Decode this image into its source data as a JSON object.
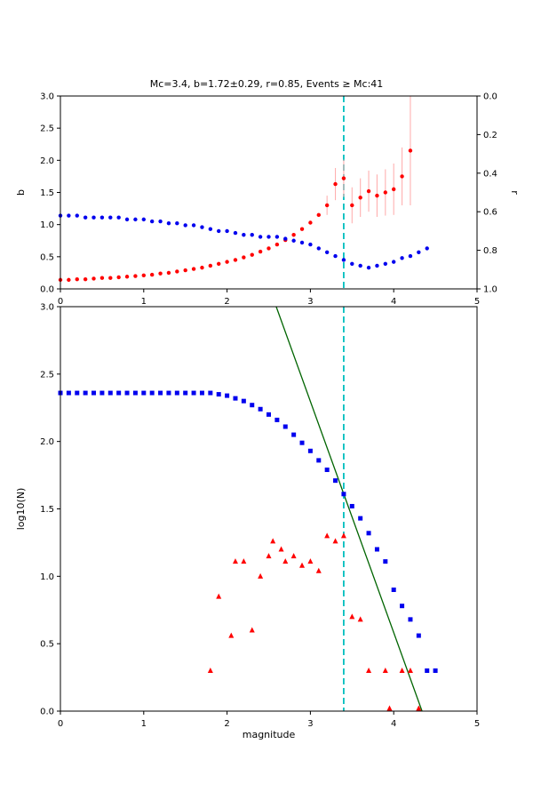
{
  "figure": {
    "title": "Mc=3.4, b=1.72±0.29, r=0.85, Events ≥ Mc:41",
    "background": "#ffffff"
  },
  "chart_data": {
    "type": "scatter",
    "title": "Mc=3.4, b=1.72±0.29, r=0.85, Events ≥ Mc:41",
    "stats": {
      "mc": 3.4,
      "b": 1.72,
      "b_err": 0.29,
      "r": 0.85,
      "events_ge_mc": 41
    },
    "colors": {
      "b_series": "#ff0000",
      "r_series": "#0000ee",
      "error_bar": "#ffb0b0",
      "mc_line": "#00bfbf",
      "fit_line": "#006400",
      "cumulative": "#0000ee",
      "binned": "#ff0000",
      "axis": "#000000"
    },
    "panels": [
      {
        "id": "top",
        "xlim": [
          0,
          5
        ],
        "xticks": [
          0,
          1,
          2,
          3,
          4,
          5
        ],
        "xtick_labels": [
          "0",
          "1",
          "2",
          "3",
          "4",
          "5"
        ],
        "xlabel": "",
        "left_axis": {
          "label": "b",
          "lim": [
            0,
            3
          ],
          "ticks": [
            0,
            0.5,
            1,
            1.5,
            2,
            2.5,
            3
          ],
          "tick_labels": [
            "0.0",
            "0.5",
            "1.0",
            "1.5",
            "2.0",
            "2.5",
            "3.0"
          ]
        },
        "right_axis": {
          "label": "r",
          "lim": [
            0,
            1
          ],
          "ticks": [
            0,
            0.2,
            0.4,
            0.6,
            0.8,
            1
          ],
          "tick_labels": [
            "0.0",
            "0.2",
            "0.4",
            "0.6",
            "0.8",
            "1.0"
          ]
        },
        "lines": [
          {
            "type": "vline",
            "x": 3.4,
            "color": "#00bfbf",
            "dash": "7,4",
            "width": 1.8,
            "name": "mc-line"
          }
        ],
        "series": [
          {
            "name": "b_value",
            "marker": "circle",
            "color": "#ff0000",
            "axis": "left",
            "err_color": "#ffb0b0",
            "x": [
              0,
              0.1,
              0.2,
              0.3,
              0.4,
              0.5,
              0.6,
              0.7,
              0.8,
              0.9,
              1,
              1.1,
              1.2,
              1.3,
              1.4,
              1.5,
              1.6,
              1.7,
              1.8,
              1.9,
              2,
              2.1,
              2.2,
              2.3,
              2.4,
              2.5,
              2.6,
              2.7,
              2.8,
              2.9,
              3,
              3.1,
              3.2,
              3.3,
              3.4,
              3.5,
              3.6,
              3.7,
              3.8,
              3.9,
              4,
              4.1,
              4.2
            ],
            "y": [
              0.14,
              0.14,
              0.15,
              0.15,
              0.16,
              0.17,
              0.17,
              0.18,
              0.19,
              0.2,
              0.21,
              0.22,
              0.24,
              0.25,
              0.27,
              0.29,
              0.31,
              0.33,
              0.36,
              0.39,
              0.42,
              0.45,
              0.49,
              0.53,
              0.58,
              0.63,
              0.69,
              0.76,
              0.84,
              0.93,
              1.03,
              1.15,
              1.3,
              1.63,
              1.72,
              1.3,
              1.42,
              1.52,
              1.45,
              1.5,
              1.55,
              1.75,
              2.15
            ],
            "yerr": [
              0,
              0,
              0,
              0,
              0,
              0,
              0,
              0,
              0,
              0,
              0,
              0,
              0,
              0,
              0,
              0,
              0,
              0,
              0,
              0,
              0,
              0,
              0,
              0,
              0,
              0,
              0,
              0,
              0,
              0,
              0,
              0,
              0.15,
              0.25,
              0.29,
              0.28,
              0.3,
              0.32,
              0.33,
              0.36,
              0.4,
              0.45,
              0.85
            ]
          },
          {
            "name": "correlation_r",
            "marker": "circle",
            "color": "#0000ee",
            "axis": "right",
            "x": [
              0,
              0.1,
              0.2,
              0.3,
              0.4,
              0.5,
              0.6,
              0.7,
              0.8,
              0.9,
              1,
              1.1,
              1.2,
              1.3,
              1.4,
              1.5,
              1.6,
              1.7,
              1.8,
              1.9,
              2,
              2.1,
              2.2,
              2.3,
              2.4,
              2.5,
              2.6,
              2.7,
              2.8,
              2.9,
              3,
              3.1,
              3.2,
              3.3,
              3.4,
              3.5,
              3.6,
              3.7,
              3.8,
              3.9,
              4,
              4.1,
              4.2,
              4.3,
              4.4
            ],
            "y": [
              0.62,
              0.62,
              0.62,
              0.63,
              0.63,
              0.63,
              0.63,
              0.63,
              0.64,
              0.64,
              0.64,
              0.65,
              0.65,
              0.66,
              0.66,
              0.67,
              0.67,
              0.68,
              0.69,
              0.7,
              0.7,
              0.71,
              0.72,
              0.72,
              0.73,
              0.73,
              0.73,
              0.74,
              0.75,
              0.76,
              0.77,
              0.79,
              0.81,
              0.83,
              0.85,
              0.87,
              0.88,
              0.89,
              0.88,
              0.87,
              0.86,
              0.84,
              0.83,
              0.81,
              0.79
            ]
          }
        ]
      },
      {
        "id": "bottom",
        "xlim": [
          0,
          5
        ],
        "xticks": [
          0,
          1,
          2,
          3,
          4,
          5
        ],
        "xtick_labels": [
          "0",
          "1",
          "2",
          "3",
          "4",
          "5"
        ],
        "xlabel": "magnitude",
        "left_axis": {
          "label": "log10(N)",
          "lim": [
            0,
            3
          ],
          "ticks": [
            0,
            0.5,
            1,
            1.5,
            2,
            2.5,
            3
          ],
          "tick_labels": [
            "0.0",
            "0.5",
            "1.0",
            "1.5",
            "2.0",
            "2.5",
            "3.0"
          ]
        },
        "lines": [
          {
            "type": "segment",
            "x1": 2.59,
            "y1": 3.0,
            "x2": 4.34,
            "y2": 0.0,
            "color": "#006400",
            "width": 1.3,
            "name": "gr-fit-line"
          },
          {
            "type": "vline",
            "x": 3.4,
            "color": "#00bfbf",
            "dash": "7,4",
            "width": 1.8,
            "name": "mc-line"
          }
        ],
        "series": [
          {
            "name": "cumulative_events",
            "marker": "square",
            "color": "#0000ee",
            "axis": "left",
            "x": [
              0,
              0.1,
              0.2,
              0.3,
              0.4,
              0.5,
              0.6,
              0.7,
              0.8,
              0.9,
              1,
              1.1,
              1.2,
              1.3,
              1.4,
              1.5,
              1.6,
              1.7,
              1.8,
              1.9,
              2,
              2.1,
              2.2,
              2.3,
              2.4,
              2.5,
              2.6,
              2.7,
              2.8,
              2.9,
              3,
              3.1,
              3.2,
              3.3,
              3.4,
              3.5,
              3.6,
              3.7,
              3.8,
              3.9,
              4,
              4.1,
              4.2,
              4.3,
              4.4,
              4.5
            ],
            "y": [
              2.36,
              2.36,
              2.36,
              2.36,
              2.36,
              2.36,
              2.36,
              2.36,
              2.36,
              2.36,
              2.36,
              2.36,
              2.36,
              2.36,
              2.36,
              2.36,
              2.36,
              2.36,
              2.36,
              2.35,
              2.34,
              2.32,
              2.3,
              2.27,
              2.24,
              2.2,
              2.16,
              2.11,
              2.05,
              1.99,
              1.93,
              1.86,
              1.79,
              1.71,
              1.61,
              1.52,
              1.43,
              1.32,
              1.2,
              1.11,
              0.9,
              0.78,
              0.68,
              0.56,
              0.3,
              0.3
            ]
          },
          {
            "name": "binned_events",
            "marker": "triangle",
            "color": "#ff0000",
            "axis": "left",
            "points": [
              [
                1.8,
                0.3
              ],
              [
                1.9,
                0.85
              ],
              [
                2.05,
                0.56
              ],
              [
                2.1,
                1.11
              ],
              [
                2.2,
                1.11
              ],
              [
                2.3,
                0.6
              ],
              [
                2.4,
                1.0
              ],
              [
                2.5,
                1.15
              ],
              [
                2.55,
                1.26
              ],
              [
                2.65,
                1.2
              ],
              [
                2.7,
                1.11
              ],
              [
                2.8,
                1.15
              ],
              [
                2.9,
                1.08
              ],
              [
                3.0,
                1.11
              ],
              [
                3.1,
                1.04
              ],
              [
                3.2,
                1.3
              ],
              [
                3.3,
                1.26
              ],
              [
                3.4,
                1.3
              ],
              [
                3.5,
                0.7
              ],
              [
                3.6,
                0.68
              ],
              [
                3.7,
                0.3
              ],
              [
                3.9,
                0.3
              ],
              [
                3.95,
                0.02
              ],
              [
                4.1,
                0.3
              ],
              [
                4.2,
                0.3
              ],
              [
                4.3,
                0.02
              ]
            ]
          }
        ]
      }
    ]
  }
}
